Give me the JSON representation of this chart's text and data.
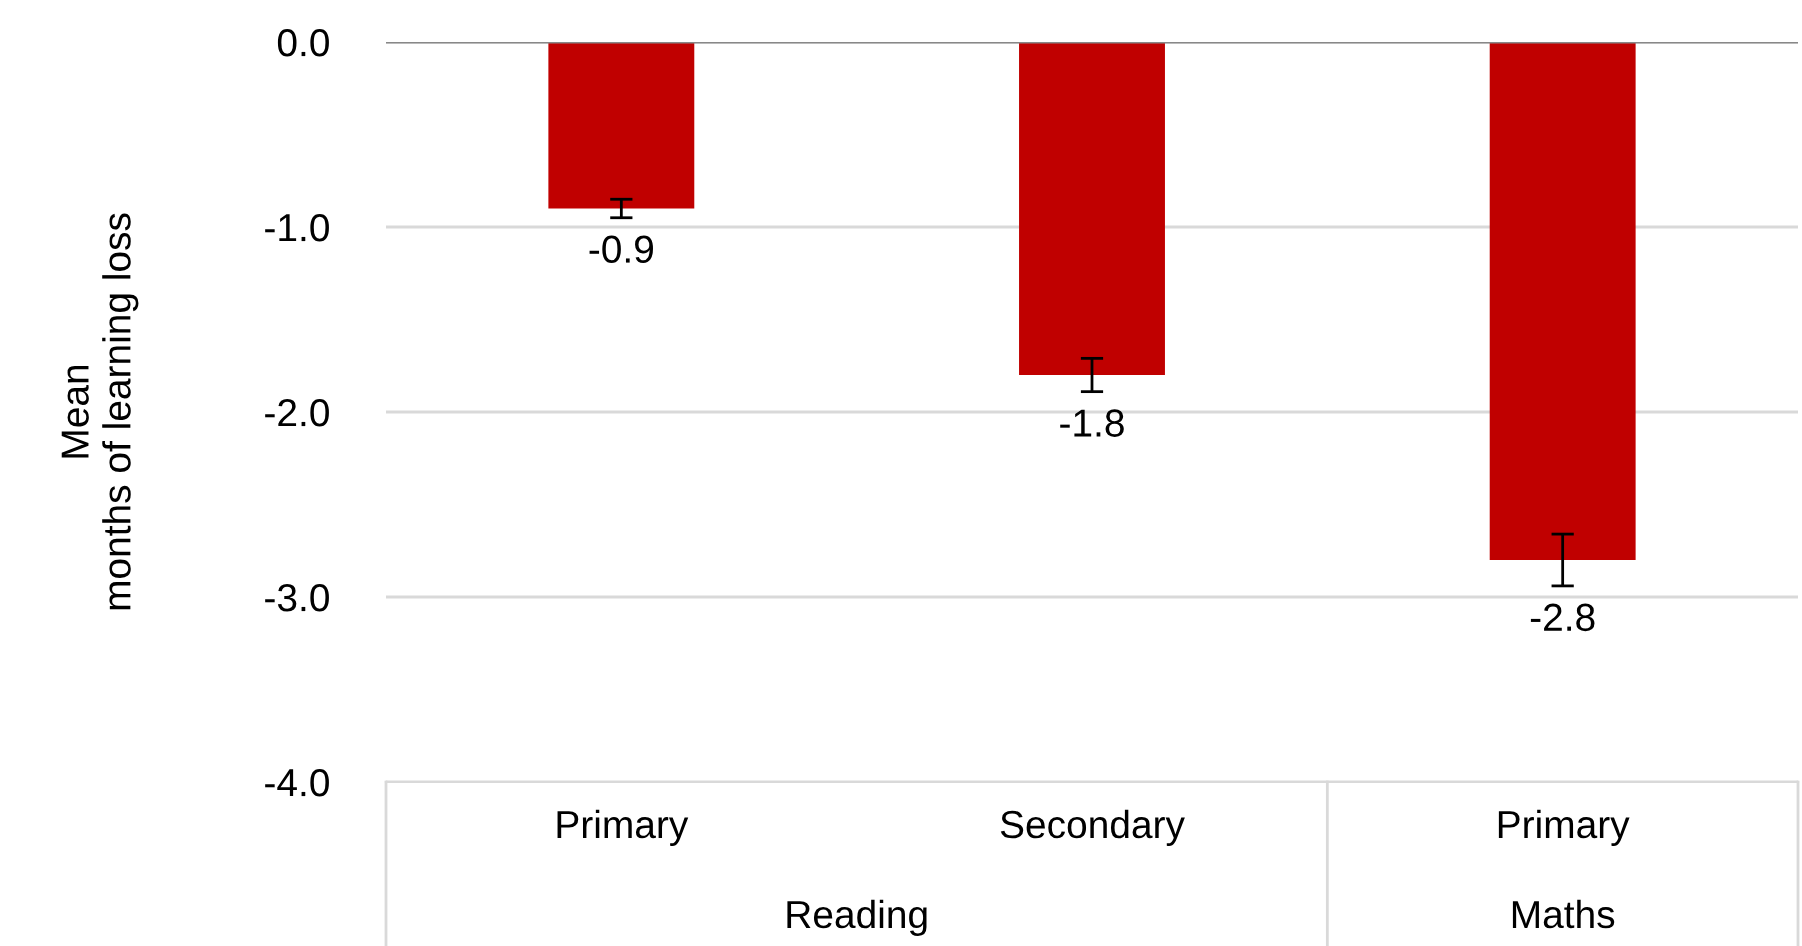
{
  "chart_data": {
    "type": "bar",
    "ylabel": "Mean\nmonths of learning loss",
    "categories": [
      "Primary",
      "Secondary",
      "Primary"
    ],
    "values": [
      -0.9,
      -1.8,
      -2.8
    ],
    "errors": [
      0.05,
      0.09,
      0.14
    ],
    "color": "#c00000",
    "ylim": [
      -4.0,
      0.0
    ],
    "yticks": [
      {
        "value": -4,
        "label": "-4.0"
      },
      {
        "value": -3,
        "label": "-3.0"
      },
      {
        "value": -2,
        "label": "-2.0"
      },
      {
        "value": -1,
        "label": "-1.0"
      },
      {
        "value": 0,
        "label": "0.0"
      }
    ],
    "grid": "y",
    "data_labels": true,
    "annotations": [
      "Reading",
      "Maths"
    ]
  }
}
